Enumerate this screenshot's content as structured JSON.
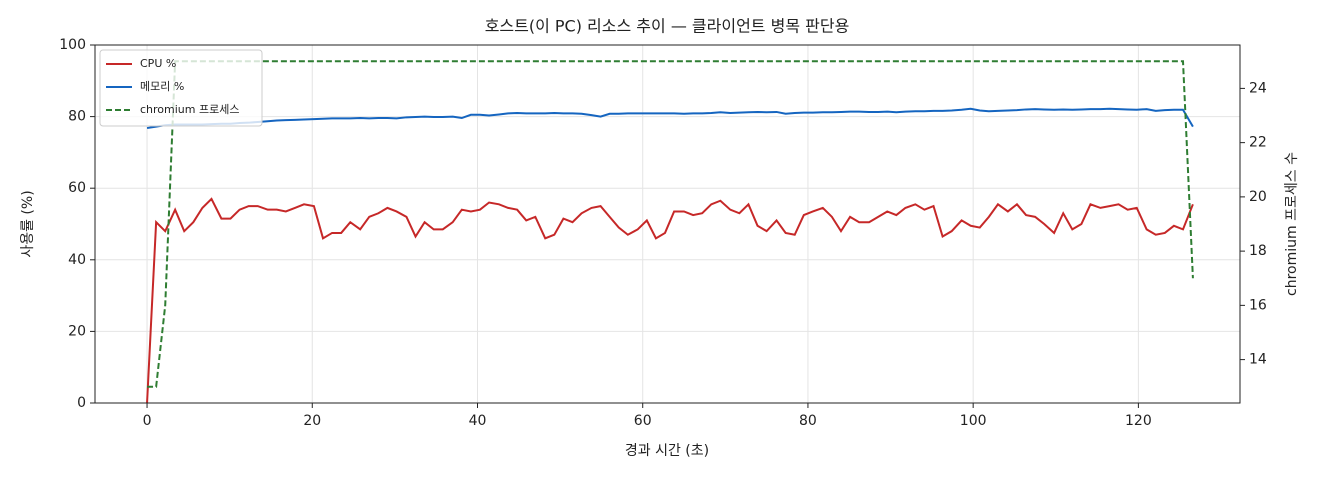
{
  "chart_data": {
    "type": "line",
    "title": "호스트(이 PC) 리소스 추이 — 클라이언트 병목 판단용",
    "xlabel": "경과 시간 (초)",
    "ylabel": "사용률 (%)",
    "y2label": "chromium 프로세스 수",
    "x": [
      0,
      1.1,
      2.2,
      3.4,
      4.5,
      5.6,
      6.7,
      7.8,
      9.0,
      10.1,
      11.2,
      12.3,
      13.4,
      14.6,
      15.7,
      16.8,
      17.9,
      19.0,
      20.2,
      21.3,
      22.4,
      23.5,
      24.6,
      25.8,
      26.9,
      28.0,
      29.1,
      30.2,
      31.4,
      32.5,
      33.6,
      34.7,
      35.8,
      37.0,
      38.1,
      39.2,
      40.3,
      41.4,
      42.6,
      43.7,
      44.8,
      45.9,
      47.0,
      48.2,
      49.3,
      50.4,
      51.5,
      52.6,
      53.8,
      54.9,
      56.0,
      57.1,
      58.2,
      59.4,
      60.5,
      61.6,
      62.7,
      63.8,
      65.0,
      66.1,
      67.2,
      68.3,
      69.4,
      70.6,
      71.7,
      72.8,
      73.9,
      75.0,
      76.2,
      77.3,
      78.4,
      79.5,
      80.6,
      81.8,
      82.9,
      84.0,
      85.1,
      86.2,
      87.4,
      88.5,
      89.6,
      90.7,
      91.8,
      93.0,
      94.1,
      95.2,
      96.3,
      97.4,
      98.6,
      99.7,
      100.8,
      101.9,
      103.0,
      104.2,
      105.3,
      106.4,
      107.5,
      108.6,
      109.8,
      110.9,
      112.0,
      113.1,
      114.2,
      115.4,
      116.5,
      117.6,
      118.7,
      119.8,
      121.0,
      122.1,
      123.2,
      124.3,
      125.4,
      126.6
    ],
    "series": [
      {
        "name": "CPU %",
        "color": "#c62828",
        "values": [
          0,
          50.5,
          48,
          54,
          48,
          50.5,
          54.5,
          57,
          51.5,
          51.5,
          54,
          55,
          55,
          54,
          54,
          53.5,
          54.5,
          55.5,
          55,
          46,
          47.5,
          47.5,
          50.5,
          48.5,
          52,
          53,
          54.5,
          53.5,
          52,
          46.5,
          50.5,
          48.5,
          48.5,
          50.5,
          54,
          53.5,
          54,
          56,
          55.5,
          54.5,
          54,
          51,
          52,
          46,
          47,
          51.5,
          50.5,
          53,
          54.5,
          55,
          52,
          49,
          47,
          48.5,
          51,
          46,
          47.5,
          53.5,
          53.5,
          52.5,
          53,
          55.5,
          56.5,
          54,
          53,
          55.5,
          49.5,
          48,
          51,
          47.5,
          47,
          52.5,
          53.5,
          54.5,
          52,
          48,
          52,
          50.5,
          50.5,
          52,
          53.5,
          52.5,
          54.5,
          55.5,
          54,
          55,
          46.5,
          48,
          51,
          49.5,
          49,
          52,
          55.5,
          53.5,
          55.5,
          52.5,
          52,
          50,
          47.5,
          53,
          48.5,
          50,
          55.5,
          54.5,
          55,
          55.5,
          54,
          54.5,
          48.5,
          47,
          47.5,
          49.5,
          48.5,
          55.5
        ]
      },
      {
        "name": "메모리 %",
        "color": "#1565c0",
        "values": [
          76.8,
          77.2,
          77.6,
          77.8,
          77.8,
          77.8,
          77.8,
          77.9,
          78.0,
          78.0,
          78.2,
          78.3,
          78.5,
          78.7,
          78.9,
          79.0,
          79.1,
          79.2,
          79.3,
          79.4,
          79.5,
          79.5,
          79.5,
          79.6,
          79.5,
          79.6,
          79.6,
          79.5,
          79.8,
          79.9,
          80.0,
          79.9,
          79.9,
          80.0,
          79.6,
          80.5,
          80.5,
          80.3,
          80.6,
          80.9,
          81.0,
          80.9,
          80.9,
          80.9,
          81.0,
          80.9,
          80.9,
          80.8,
          80.4,
          80.0,
          80.8,
          80.8,
          80.9,
          80.9,
          80.9,
          80.9,
          80.9,
          80.9,
          80.8,
          80.9,
          80.9,
          81.0,
          81.2,
          81.0,
          81.1,
          81.2,
          81.3,
          81.2,
          81.3,
          80.8,
          81.0,
          81.1,
          81.1,
          81.2,
          81.2,
          81.3,
          81.4,
          81.4,
          81.3,
          81.3,
          81.4,
          81.2,
          81.4,
          81.5,
          81.5,
          81.6,
          81.6,
          81.7,
          81.9,
          82.2,
          81.7,
          81.5,
          81.6,
          81.7,
          81.8,
          82.0,
          82.1,
          82.0,
          81.9,
          82.0,
          81.9,
          82.0,
          82.1,
          82.1,
          82.2,
          82.1,
          82.0,
          81.9,
          82.1,
          81.6,
          81.8,
          81.9,
          81.9,
          77.2
        ]
      },
      {
        "name": "chromium 프로세스",
        "color": "#2e7d32",
        "dashed": true,
        "axis": "y2",
        "values": [
          13,
          13,
          16,
          25,
          25,
          25,
          25,
          25,
          25,
          25,
          25,
          25,
          25,
          25,
          25,
          25,
          25,
          25,
          25,
          25,
          25,
          25,
          25,
          25,
          25,
          25,
          25,
          25,
          25,
          25,
          25,
          25,
          25,
          25,
          25,
          25,
          25,
          25,
          25,
          25,
          25,
          25,
          25,
          25,
          25,
          25,
          25,
          25,
          25,
          25,
          25,
          25,
          25,
          25,
          25,
          25,
          25,
          25,
          25,
          25,
          25,
          25,
          25,
          25,
          25,
          25,
          25,
          25,
          25,
          25,
          25,
          25,
          25,
          25,
          25,
          25,
          25,
          25,
          25,
          25,
          25,
          25,
          25,
          25,
          25,
          25,
          25,
          25,
          25,
          25,
          25,
          25,
          25,
          25,
          25,
          25,
          25,
          25,
          25,
          25,
          25,
          25,
          25,
          25,
          25,
          25,
          25,
          25,
          25,
          25,
          25,
          25,
          25,
          17
        ]
      }
    ],
    "xlim": [
      -6.3,
      132.3
    ],
    "xticks": [
      0,
      20,
      40,
      60,
      80,
      100,
      120
    ],
    "ylim": [
      0,
      100
    ],
    "yticks": [
      0,
      20,
      40,
      60,
      80,
      100
    ],
    "y2lim": [
      12.4,
      25.6
    ],
    "y2ticks": [
      14,
      16,
      18,
      20,
      22,
      24
    ],
    "grid": true,
    "legend": "upper left"
  }
}
